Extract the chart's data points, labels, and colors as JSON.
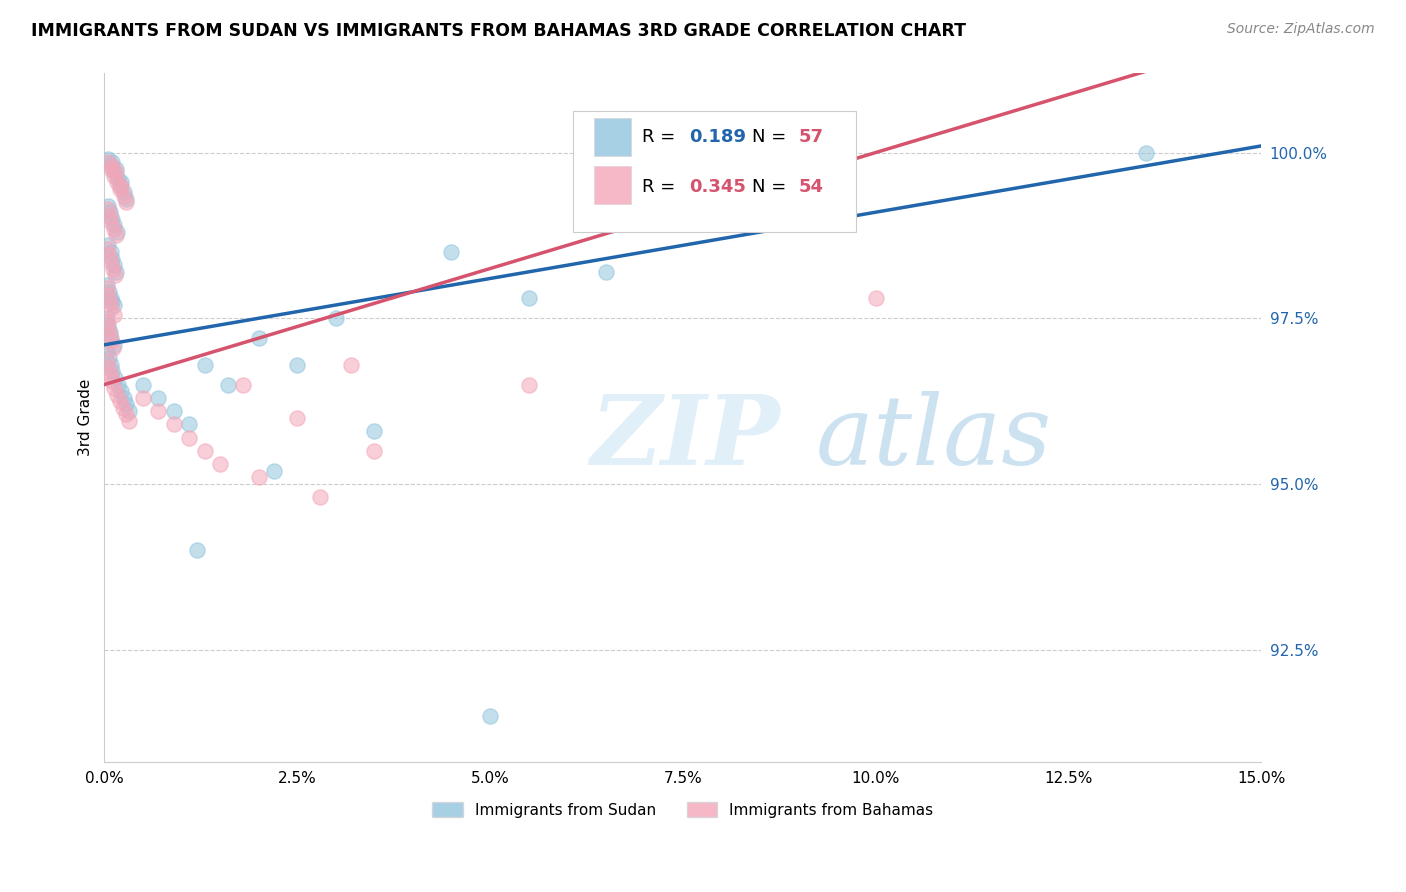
{
  "title": "IMMIGRANTS FROM SUDAN VS IMMIGRANTS FROM BAHAMAS 3RD GRADE CORRELATION CHART",
  "source": "Source: ZipAtlas.com",
  "ylabel": "3rd Grade",
  "x_min": 0.0,
  "x_max": 15.0,
  "y_min": 90.8,
  "y_max": 101.2,
  "blue_R": 0.189,
  "blue_N": 57,
  "pink_R": 0.345,
  "pink_N": 54,
  "blue_color": "#92c5de",
  "pink_color": "#f4a6b8",
  "blue_line_color": "#2166ac",
  "pink_line_color": "#d6536d",
  "legend_blue_label": "Immigrants from Sudan",
  "legend_pink_label": "Immigrants from Bahamas",
  "blue_trend": [
    97.1,
    0.2
  ],
  "pink_trend": [
    96.5,
    0.35
  ],
  "blue_points": [
    [
      0.05,
      99.9
    ],
    [
      0.08,
      99.8
    ],
    [
      0.1,
      99.85
    ],
    [
      0.12,
      99.7
    ],
    [
      0.15,
      99.75
    ],
    [
      0.18,
      99.6
    ],
    [
      0.2,
      99.5
    ],
    [
      0.22,
      99.55
    ],
    [
      0.25,
      99.4
    ],
    [
      0.28,
      99.3
    ],
    [
      0.05,
      99.2
    ],
    [
      0.07,
      99.1
    ],
    [
      0.1,
      99.0
    ],
    [
      0.13,
      98.9
    ],
    [
      0.16,
      98.8
    ],
    [
      0.05,
      98.6
    ],
    [
      0.08,
      98.5
    ],
    [
      0.1,
      98.4
    ],
    [
      0.12,
      98.3
    ],
    [
      0.15,
      98.2
    ],
    [
      0.04,
      98.0
    ],
    [
      0.06,
      97.9
    ],
    [
      0.08,
      97.8
    ],
    [
      0.1,
      97.75
    ],
    [
      0.13,
      97.7
    ],
    [
      0.03,
      97.5
    ],
    [
      0.05,
      97.4
    ],
    [
      0.07,
      97.3
    ],
    [
      0.09,
      97.2
    ],
    [
      0.12,
      97.1
    ],
    [
      0.04,
      97.0
    ],
    [
      0.06,
      96.9
    ],
    [
      0.08,
      96.8
    ],
    [
      0.1,
      96.7
    ],
    [
      0.14,
      96.6
    ],
    [
      0.18,
      96.5
    ],
    [
      0.22,
      96.4
    ],
    [
      0.25,
      96.3
    ],
    [
      0.28,
      96.2
    ],
    [
      0.32,
      96.1
    ],
    [
      0.5,
      96.5
    ],
    [
      0.7,
      96.3
    ],
    [
      0.9,
      96.1
    ],
    [
      1.1,
      95.9
    ],
    [
      1.3,
      96.8
    ],
    [
      1.6,
      96.5
    ],
    [
      2.0,
      97.2
    ],
    [
      2.5,
      96.8
    ],
    [
      3.0,
      97.5
    ],
    [
      4.5,
      98.5
    ],
    [
      5.5,
      97.8
    ],
    [
      6.5,
      98.2
    ],
    [
      1.2,
      94.0
    ],
    [
      2.2,
      95.2
    ],
    [
      3.5,
      95.8
    ],
    [
      5.0,
      91.5
    ],
    [
      13.5,
      100.0
    ]
  ],
  "pink_points": [
    [
      0.05,
      99.85
    ],
    [
      0.08,
      99.75
    ],
    [
      0.1,
      99.8
    ],
    [
      0.12,
      99.65
    ],
    [
      0.15,
      99.7
    ],
    [
      0.17,
      99.55
    ],
    [
      0.2,
      99.45
    ],
    [
      0.22,
      99.5
    ],
    [
      0.25,
      99.35
    ],
    [
      0.28,
      99.25
    ],
    [
      0.05,
      99.15
    ],
    [
      0.07,
      99.05
    ],
    [
      0.09,
      98.95
    ],
    [
      0.12,
      98.85
    ],
    [
      0.15,
      98.75
    ],
    [
      0.04,
      98.55
    ],
    [
      0.06,
      98.45
    ],
    [
      0.09,
      98.35
    ],
    [
      0.11,
      98.25
    ],
    [
      0.14,
      98.15
    ],
    [
      0.03,
      97.95
    ],
    [
      0.05,
      97.85
    ],
    [
      0.07,
      97.75
    ],
    [
      0.09,
      97.65
    ],
    [
      0.12,
      97.55
    ],
    [
      0.03,
      97.45
    ],
    [
      0.05,
      97.35
    ],
    [
      0.07,
      97.25
    ],
    [
      0.09,
      97.15
    ],
    [
      0.11,
      97.05
    ],
    [
      0.04,
      96.85
    ],
    [
      0.06,
      96.75
    ],
    [
      0.08,
      96.65
    ],
    [
      0.1,
      96.55
    ],
    [
      0.13,
      96.45
    ],
    [
      0.16,
      96.35
    ],
    [
      0.2,
      96.25
    ],
    [
      0.24,
      96.15
    ],
    [
      0.28,
      96.05
    ],
    [
      0.32,
      95.95
    ],
    [
      0.5,
      96.3
    ],
    [
      0.7,
      96.1
    ],
    [
      0.9,
      95.9
    ],
    [
      1.1,
      95.7
    ],
    [
      1.3,
      95.5
    ],
    [
      1.5,
      95.3
    ],
    [
      2.0,
      95.1
    ],
    [
      1.8,
      96.5
    ],
    [
      2.5,
      96.0
    ],
    [
      3.2,
      96.8
    ],
    [
      2.8,
      94.8
    ],
    [
      3.5,
      95.5
    ],
    [
      5.5,
      96.5
    ],
    [
      10.0,
      97.8
    ]
  ]
}
